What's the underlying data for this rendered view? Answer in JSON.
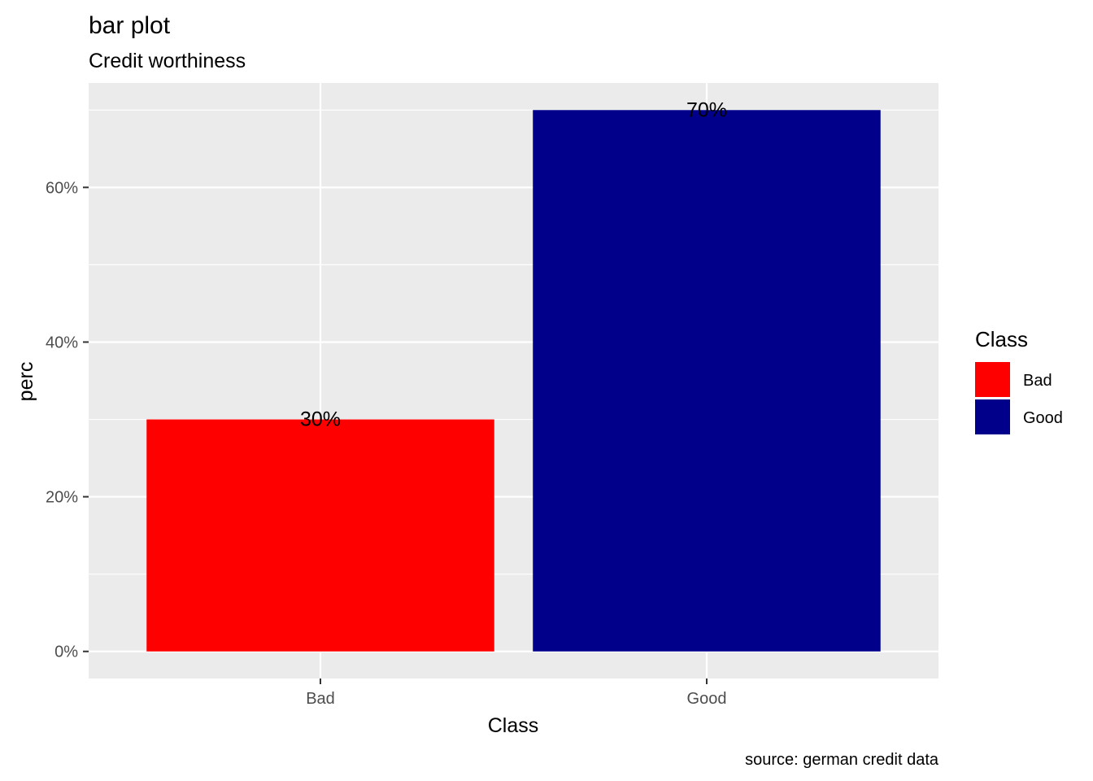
{
  "chart_data": {
    "type": "bar",
    "title": "bar plot",
    "subtitle": "Credit worthiness",
    "caption": "source: german credit data",
    "xlabel": "Class",
    "ylabel": "perc",
    "categories": [
      "Bad",
      "Good"
    ],
    "values": [
      0.3,
      0.7
    ],
    "data_labels": [
      "30%",
      "70%"
    ],
    "colors": [
      "#FF0000",
      "#00008B"
    ],
    "ylim": [
      -0.035,
      0.735
    ],
    "y_ticks": [
      0,
      0.2,
      0.4,
      0.6
    ],
    "y_tick_labels": [
      "0%",
      "20%",
      "40%",
      "60%"
    ],
    "y_minor_ticks": [
      0.1,
      0.3,
      0.5,
      0.7
    ],
    "grid": true,
    "panel_background": "#EBEBEB",
    "grid_color": "#FFFFFF",
    "legend": {
      "title": "Class",
      "placement": "right",
      "items": [
        {
          "label": "Bad",
          "color": "#FF0000"
        },
        {
          "label": "Good",
          "color": "#00008B"
        }
      ]
    }
  }
}
